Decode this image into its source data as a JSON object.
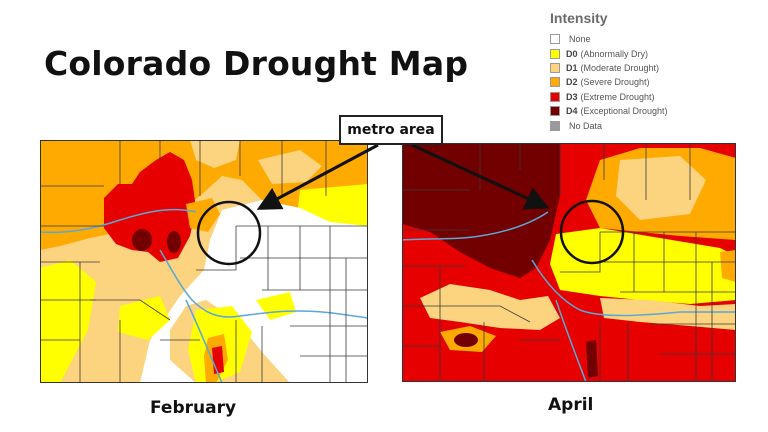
{
  "title": "Colorado Drought Map",
  "legend": {
    "title": "Intensity",
    "items": [
      {
        "code": "",
        "label": "None",
        "color": "#ffffff"
      },
      {
        "code": "D0",
        "label": "(Abnormally Dry)",
        "color": "#ffff00"
      },
      {
        "code": "D1",
        "label": "(Moderate Drought)",
        "color": "#fcd37f"
      },
      {
        "code": "D2",
        "label": "(Severe Drought)",
        "color": "#ffaa00"
      },
      {
        "code": "D3",
        "label": "(Extreme Drought)",
        "color": "#e60000"
      },
      {
        "code": "D4",
        "label": "(Exceptional Drought)",
        "color": "#730000"
      },
      {
        "code": "",
        "label": "No Data",
        "color": "#9b9b9b"
      }
    ]
  },
  "callout": {
    "label": "metro area"
  },
  "maps": {
    "left": {
      "label": "February"
    },
    "right": {
      "label": "April"
    }
  }
}
